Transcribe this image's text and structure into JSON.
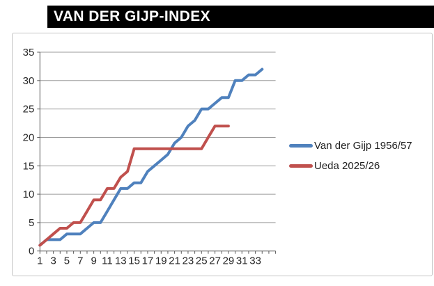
{
  "title": "VAN DER GIJP-INDEX",
  "chart_data": {
    "type": "line",
    "title": "VAN DER GIJP-INDEX",
    "xlabel": "",
    "ylabel": "",
    "x_tick_labels": [
      "1",
      "3",
      "5",
      "7",
      "9",
      "11",
      "13",
      "15",
      "17",
      "19",
      "21",
      "23",
      "25",
      "27",
      "29",
      "31",
      "33"
    ],
    "y_ticks": [
      0,
      5,
      10,
      15,
      20,
      25,
      30,
      35
    ],
    "xlim": [
      1,
      36
    ],
    "ylim": [
      0,
      35
    ],
    "grid": true,
    "legend_position": "right",
    "series": [
      {
        "name": "Van der Gijp 1956/57",
        "color": "#4F81BD",
        "x_start": 1,
        "values": [
          1,
          2,
          2,
          2,
          3,
          3,
          3,
          4,
          5,
          5,
          7,
          9,
          11,
          11,
          12,
          12,
          14,
          15,
          16,
          17,
          19,
          20,
          22,
          23,
          25,
          25,
          26,
          27,
          27,
          30,
          30,
          31,
          31,
          32
        ]
      },
      {
        "name": "Ueda 2025/26",
        "color": "#C0504D",
        "x_start": 1,
        "values": [
          1,
          2,
          3,
          4,
          4,
          5,
          5,
          7,
          9,
          9,
          11,
          11,
          13,
          14,
          18,
          18,
          18,
          18,
          18,
          18,
          18,
          18,
          18,
          18,
          18,
          20,
          22,
          22,
          22
        ]
      }
    ]
  },
  "colors": {
    "title_bg": "#000000",
    "title_fg": "#FFFFFF",
    "grid_line": "#9B9B9B",
    "axis_line": "#595959",
    "tick_text": "#262626",
    "frame_border": "#C3C3C3"
  }
}
